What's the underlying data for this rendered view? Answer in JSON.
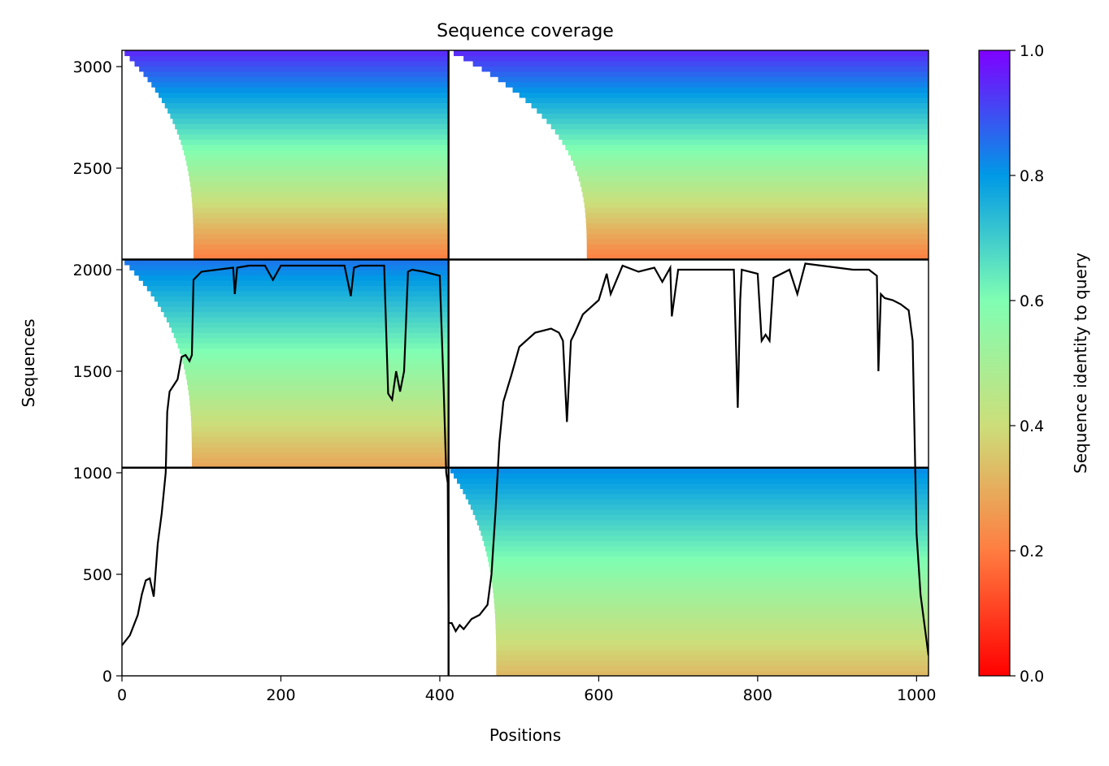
{
  "chart_data": {
    "type": "heatmap",
    "title": "Sequence coverage",
    "xlabel": "Positions",
    "ylabel": "Sequences",
    "xlim": [
      0,
      1015
    ],
    "ylim": [
      0,
      3080
    ],
    "x_ticks": [
      0,
      200,
      400,
      600,
      800,
      1000
    ],
    "y_ticks": [
      0,
      500,
      1000,
      1500,
      2000,
      2500,
      3000
    ],
    "chain_breaks": [
      411
    ],
    "block_rows": [
      1025,
      2050
    ],
    "colorbar": {
      "label": "Sequence identity to query",
      "range": [
        0,
        1
      ],
      "ticks": [
        "0.0",
        "0.2",
        "0.4",
        "0.6",
        "0.8",
        "1.0"
      ],
      "colormap": "rainbow_r",
      "stops": [
        "#ff0000",
        "#ff7d41",
        "#ccde7a",
        "#80feb3",
        "#0099e6",
        "#7f00ff"
      ]
    },
    "blocks": [
      {
        "x_start": 0,
        "x_end": 411,
        "y_start": 2050,
        "y_end": 3080,
        "coverage_start": 90,
        "identity_bottom": 0.2,
        "identity_top": 0.95
      },
      {
        "x_start": 411,
        "x_end": 1015,
        "y_start": 2050,
        "y_end": 3080,
        "coverage_start": 585,
        "identity_bottom": 0.2,
        "identity_top": 0.95
      },
      {
        "x_start": 0,
        "x_end": 411,
        "y_start": 1025,
        "y_end": 2050,
        "coverage_start": 88,
        "identity_bottom": 0.28,
        "identity_top": 0.85
      },
      {
        "x_start": 411,
        "x_end": 1015,
        "y_start": 0,
        "y_end": 1025,
        "coverage_start": 471,
        "identity_bottom": 0.32,
        "identity_top": 0.82
      }
    ],
    "series": [
      {
        "x": [
          0,
          10,
          20,
          25,
          30,
          35,
          40,
          42,
          45,
          50,
          55,
          57,
          60,
          65,
          70,
          75,
          80,
          85,
          88,
          90,
          100,
          120,
          140,
          142,
          145,
          160,
          180,
          190,
          200,
          220,
          250,
          280,
          288,
          292,
          300,
          320,
          330,
          335,
          340,
          345,
          350,
          355,
          360,
          365,
          380,
          400,
          405,
          408,
          410,
          411,
          415,
          420,
          425,
          430,
          440,
          450,
          460,
          465,
          470,
          475,
          480,
          490,
          500,
          520,
          540,
          550,
          555,
          560,
          565,
          570,
          580,
          600,
          610,
          615,
          630,
          650,
          670,
          680,
          690,
          692,
          700,
          720,
          750,
          770,
          775,
          778,
          780,
          800,
          805,
          810,
          815,
          820,
          840,
          850,
          860,
          880,
          900,
          920,
          940,
          950,
          952,
          955,
          960,
          970,
          980,
          990,
          995,
          1000,
          1005,
          1010,
          1015
        ],
        "y": [
          150,
          200,
          300,
          400,
          470,
          480,
          390,
          490,
          650,
          800,
          1000,
          1300,
          1400,
          1430,
          1460,
          1570,
          1580,
          1550,
          1580,
          1950,
          1990,
          2000,
          2010,
          1880,
          2010,
          2020,
          2020,
          1950,
          2020,
          2020,
          2020,
          2020,
          1870,
          2010,
          2020,
          2020,
          2020,
          1390,
          1360,
          1500,
          1400,
          1500,
          1990,
          2000,
          1990,
          1970,
          1400,
          1000,
          950,
          260,
          260,
          220,
          250,
          230,
          280,
          300,
          350,
          500,
          800,
          1150,
          1350,
          1480,
          1620,
          1690,
          1710,
          1690,
          1650,
          1250,
          1650,
          1690,
          1780,
          1850,
          1980,
          1880,
          2020,
          1990,
          2010,
          1940,
          2010,
          1770,
          2000,
          2000,
          2000,
          2000,
          1320,
          1850,
          2000,
          1980,
          1650,
          1680,
          1650,
          1960,
          2000,
          1880,
          2030,
          2020,
          2010,
          2000,
          2000,
          1970,
          1500,
          1880,
          1860,
          1850,
          1830,
          1800,
          1650,
          700,
          400,
          250,
          100
        ]
      }
    ]
  }
}
